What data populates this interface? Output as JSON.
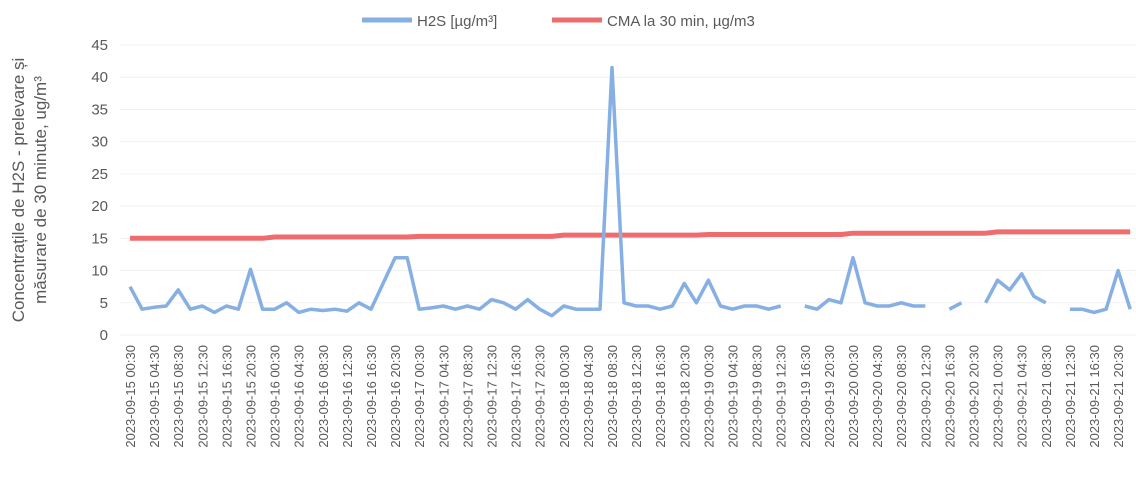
{
  "chart_data": {
    "type": "line",
    "ylabel": [
      "Concentrațile de H2S - prelevare și",
      "măsurare de 30 minute, ug/m³"
    ],
    "categories": [
      "2023-09-15 00:30",
      null,
      "2023-09-15 04:30",
      null,
      "2023-09-15 08:30",
      null,
      "2023-09-15 12:30",
      null,
      "2023-09-15 16:30",
      null,
      "2023-09-15 20:30",
      null,
      "2023-09-16 00:30",
      null,
      "2023-09-16 04:30",
      null,
      "2023-09-16 08:30",
      null,
      "2023-09-16 12:30",
      null,
      "2023-09-16 16:30",
      null,
      "2023-09-16 20:30",
      null,
      "2023-09-17 00:30",
      null,
      "2023-09-17 04:30",
      null,
      "2023-09-17 08:30",
      null,
      "2023-09-17 12:30",
      null,
      "2023-09-17 16:30",
      null,
      "2023-09-17 20:30",
      null,
      "2023-09-18 00:30",
      null,
      "2023-09-18 04:30",
      null,
      "2023-09-18 08:30",
      null,
      "2023-09-18 12:30",
      null,
      "2023-09-18 16:30",
      null,
      "2023-09-18 20:30",
      null,
      "2023-09-19 00:30",
      null,
      "2023-09-19 04:30",
      null,
      "2023-09-19 08:30",
      null,
      "2023-09-19 12:30",
      null,
      "2023-09-19 16:30",
      null,
      "2023-09-19 20:30",
      null,
      "2023-09-20 00:30",
      null,
      "2023-09-20 04:30",
      null,
      "2023-09-20 08:30",
      null,
      "2023-09-20 12:30",
      null,
      "2023-09-20 16:30",
      null,
      "2023-09-20 20:30",
      null,
      "2023-09-21 00:30",
      null,
      "2023-09-21 04:30",
      null,
      "2023-09-21 08:30",
      null,
      "2023-09-21 12:30",
      null,
      "2023-09-21 16:30",
      null,
      "2023-09-21 20:30",
      null
    ],
    "series": [
      {
        "name": "H2S [µg/m³]",
        "color": "#86afe3",
        "values": [
          7.5,
          4,
          4.3,
          4.5,
          7,
          4,
          4.5,
          3.5,
          4.5,
          4,
          10.2,
          4,
          4,
          5,
          3.5,
          4,
          3.8,
          4,
          3.7,
          5,
          4,
          8,
          12,
          12,
          4,
          4.2,
          4.5,
          4,
          4.5,
          4,
          5.5,
          5,
          4,
          5.5,
          4,
          3,
          4.5,
          4,
          4,
          4,
          41.5,
          5,
          4.5,
          4.5,
          4,
          4.5,
          8,
          5,
          8.5,
          4.5,
          4,
          4.5,
          4.5,
          4,
          4.5,
          null,
          4.5,
          4,
          5.5,
          5,
          12,
          5,
          4.5,
          4.5,
          5,
          4.5,
          4.5,
          null,
          4,
          5,
          null,
          5,
          8.5,
          7,
          9.5,
          6,
          5,
          null,
          4,
          4,
          3.5,
          4,
          10,
          4
        ]
      },
      {
        "name": "CMA la 30 min, µg/m3",
        "color": "#ee6b6e",
        "values": [
          15,
          15,
          15,
          15,
          15,
          15,
          15,
          15,
          15,
          15,
          15,
          15,
          15.2,
          15.2,
          15.2,
          15.2,
          15.2,
          15.2,
          15.2,
          15.2,
          15.2,
          15.2,
          15.2,
          15.2,
          15.3,
          15.3,
          15.3,
          15.3,
          15.3,
          15.3,
          15.3,
          15.3,
          15.3,
          15.3,
          15.3,
          15.3,
          15.5,
          15.5,
          15.5,
          15.5,
          15.5,
          15.5,
          15.5,
          15.5,
          15.5,
          15.5,
          15.5,
          15.5,
          15.6,
          15.6,
          15.6,
          15.6,
          15.6,
          15.6,
          15.6,
          15.6,
          15.6,
          15.6,
          15.6,
          15.6,
          15.8,
          15.8,
          15.8,
          15.8,
          15.8,
          15.8,
          15.8,
          15.8,
          15.8,
          15.8,
          15.8,
          15.8,
          16,
          16,
          16,
          16,
          16,
          16,
          16,
          16,
          16,
          16,
          16,
          16
        ]
      }
    ],
    "ylim": [
      0,
      45
    ],
    "yticks": [
      0,
      5,
      10,
      15,
      20,
      25,
      30,
      35,
      40,
      45
    ],
    "grid": true,
    "legend": "top"
  }
}
